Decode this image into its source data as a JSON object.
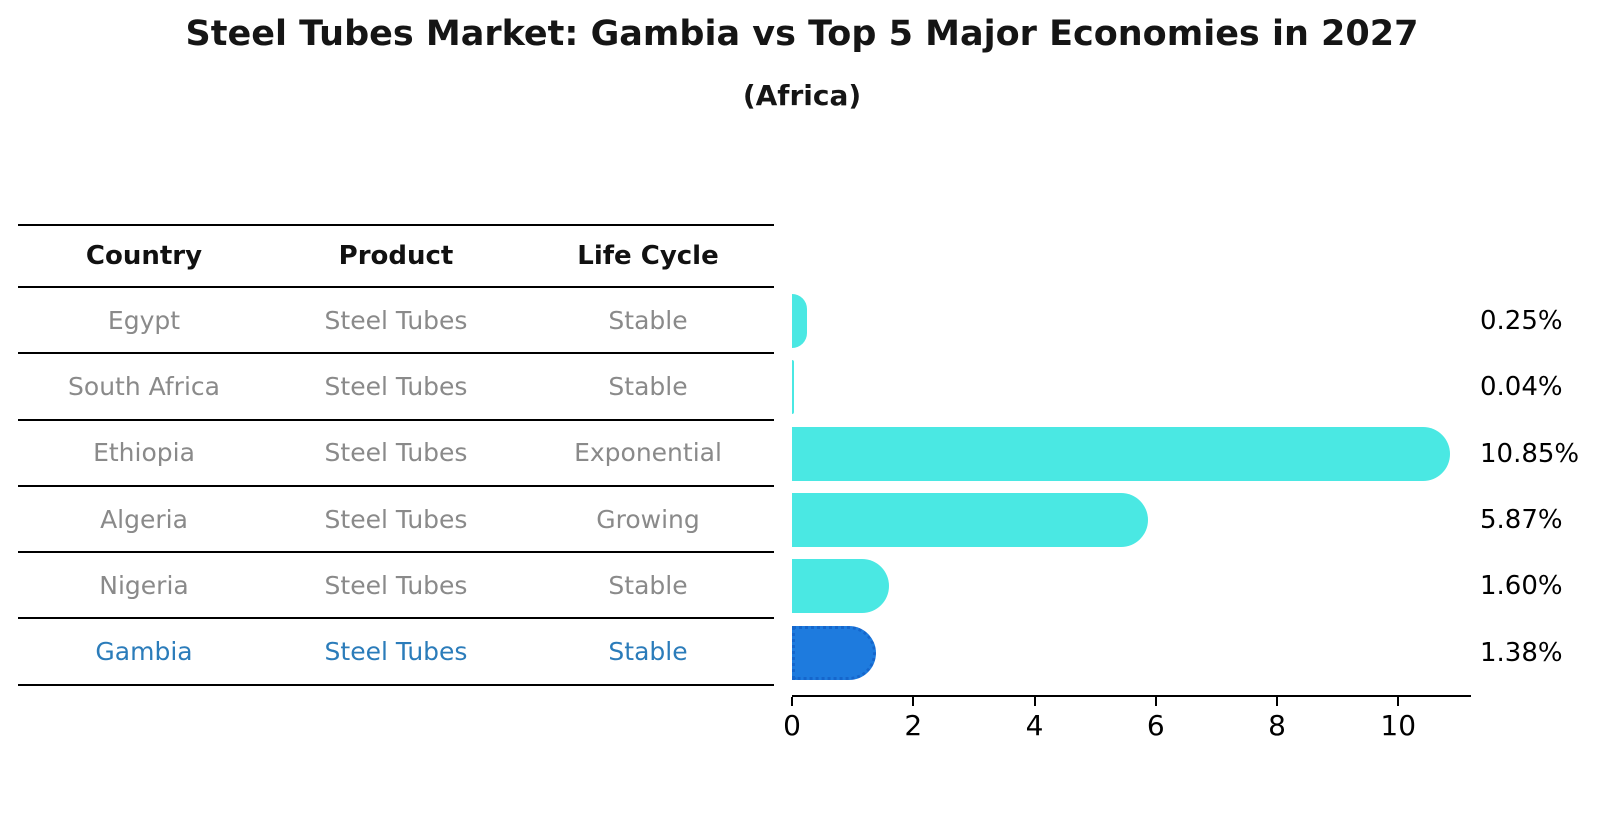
{
  "title": "Steel Tubes Market: Gambia vs Top 5 Major Economies in 2027",
  "subtitle": "(Africa)",
  "table": {
    "headers": [
      "Country",
      "Product",
      "Life Cycle"
    ]
  },
  "chart_data": {
    "type": "bar",
    "orientation": "horizontal",
    "title": "Steel Tubes Market: Gambia vs Top 5 Major Economies in 2027",
    "subtitle": "(Africa)",
    "unit": "%",
    "xlim": [
      0,
      11.2
    ],
    "x_ticks": [
      0,
      2,
      4,
      6,
      8,
      10
    ],
    "grid": false,
    "legend": false,
    "categories": [
      "Egypt",
      "South Africa",
      "Ethiopia",
      "Algeria",
      "Nigeria",
      "Gambia"
    ],
    "values": [
      0.25,
      0.04,
      10.85,
      5.87,
      1.6,
      1.38
    ],
    "rows": [
      {
        "country": "Egypt",
        "product": "Steel Tubes",
        "life_cycle": "Stable",
        "value": 0.25,
        "value_label": "0.25%",
        "highlight": false
      },
      {
        "country": "South Africa",
        "product": "Steel Tubes",
        "life_cycle": "Stable",
        "value": 0.04,
        "value_label": "0.04%",
        "highlight": false
      },
      {
        "country": "Ethiopia",
        "product": "Steel Tubes",
        "life_cycle": "Exponential",
        "value": 10.85,
        "value_label": "10.85%",
        "highlight": false
      },
      {
        "country": "Algeria",
        "product": "Steel Tubes",
        "life_cycle": "Growing",
        "value": 5.87,
        "value_label": "5.87%",
        "highlight": false
      },
      {
        "country": "Nigeria",
        "product": "Steel Tubes",
        "life_cycle": "Stable",
        "value": 1.6,
        "value_label": "1.60%",
        "highlight": false
      },
      {
        "country": "Gambia",
        "product": "Steel Tubes",
        "life_cycle": "Stable",
        "value": 1.38,
        "value_label": "1.38%",
        "highlight": true
      }
    ]
  },
  "colors": {
    "bar": "#4AE8E3",
    "highlight_bar": "#1E7BDE",
    "highlight_bar_border": "#1566CC",
    "row_text": "#8a8a8a",
    "highlight_text": "#2b7cba",
    "header_text": "#111111",
    "axis_text": "#000000"
  }
}
